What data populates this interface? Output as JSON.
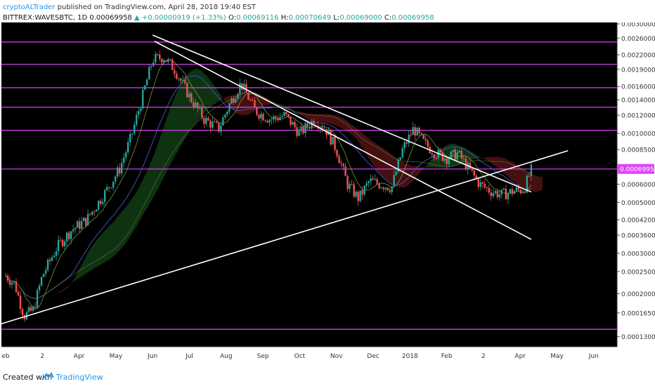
{
  "header": {
    "author": "cryptoALTrader",
    "published_text": "published on TradingView.com, April 28, 2018 19:40 EST",
    "symbol": "BITTREX:WAVESBTC, 1D",
    "last": "0.00069958",
    "change": "▲ +0.00000919 (+1.33%)",
    "open_label": "O:",
    "open": "0.00069116",
    "high_label": "H:",
    "high": "0.00070649",
    "low_label": "L:",
    "low": "0.00069000",
    "close_label": "C:",
    "close": "0.00069958"
  },
  "footer": {
    "created_with": "Created with",
    "brand": "TradingView"
  },
  "chart_data": {
    "type": "candlestick",
    "symbol": "BITTREX:WAVESBTC",
    "interval": "1D",
    "y_scale": "log",
    "ylim": [
      0.00012,
      0.003
    ],
    "y_ticks": [
      "0.00300000",
      "0.00260000",
      "0.00220000",
      "0.00190000",
      "0.00160000",
      "0.00140000",
      "0.00120000",
      "0.00100000",
      "0.00085000",
      "0.00060000",
      "0.00050000",
      "0.00042000",
      "0.00036000",
      "0.00030000",
      "0.00025000",
      "0.00020000",
      "0.00016500",
      "0.00013000"
    ],
    "x_ticks": [
      "eb",
      "2",
      "Apr",
      "May",
      "Jun",
      "Jul",
      "Aug",
      "Sep",
      "Oct",
      "Nov",
      "Dec",
      "2018",
      "Feb",
      "2",
      "Apr",
      "May",
      "Jun"
    ],
    "price_label": "0.00069958",
    "horizontal_levels": [
      0.0025,
      0.002,
      0.00158,
      0.0013,
      0.00103,
      0.000699,
      0.00014
    ],
    "trendlines": [
      {
        "from": [
          "Jun",
          0.00268
        ],
        "to": [
          "May",
          0.000555
        ]
      },
      {
        "from": [
          "Jun",
          0.00252
        ],
        "to": [
          "May",
          0.000345
        ]
      },
      {
        "from": [
          "Feb",
          0.00014
        ],
        "to": [
          "Jun",
          0.00084
        ]
      }
    ],
    "colors": {
      "up": "#26a69a",
      "down": "#ef5350",
      "level": "#e040fb",
      "trend": "#ffffff",
      "background": "#000000"
    },
    "grid": false
  }
}
